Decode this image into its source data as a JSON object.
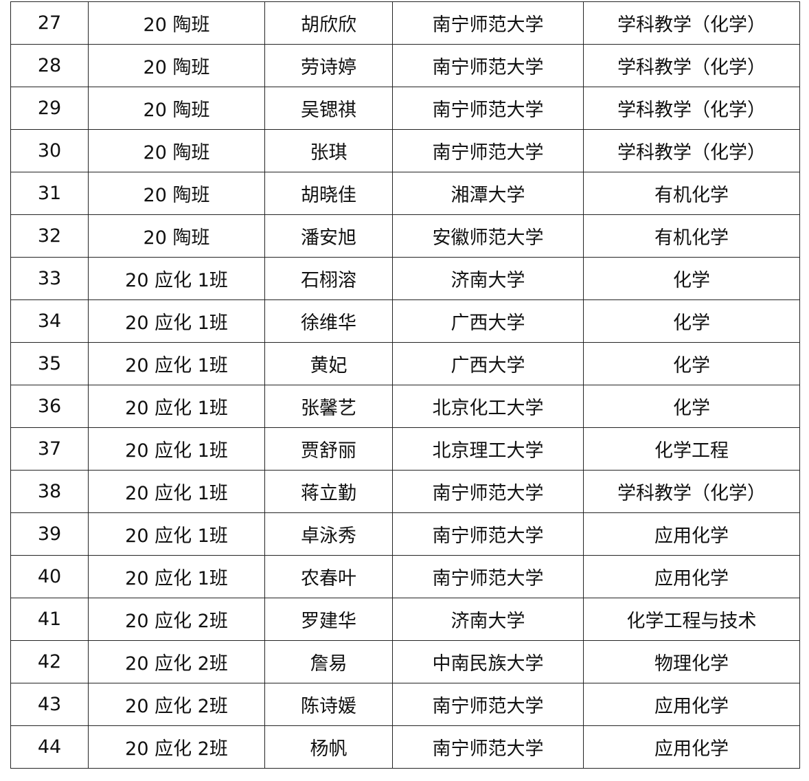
{
  "rows": [
    [
      "27",
      "20 陶班",
      "胡欣欣",
      "南宁师范大学",
      "学科教学（化学）"
    ],
    [
      "28",
      "20 陶班",
      "劳诗婷",
      "南宁师范大学",
      "学科教学（化学）"
    ],
    [
      "29",
      "20 陶班",
      "吴锶祺",
      "南宁师范大学",
      "学科教学（化学）"
    ],
    [
      "30",
      "20 陶班",
      "张琪",
      "南宁师范大学",
      "学科教学（化学）"
    ],
    [
      "31",
      "20 陶班",
      "胡晓佳",
      "湘潭大学",
      "有机化学"
    ],
    [
      "32",
      "20 陶班",
      "潘安旭",
      "安徽师范大学",
      "有机化学"
    ],
    [
      "33",
      "20 应化 1班",
      "石栩溶",
      "济南大学",
      "化学"
    ],
    [
      "34",
      "20 应化 1班",
      "徐维华",
      "广西大学",
      "化学"
    ],
    [
      "35",
      "20 应化 1班",
      "黄妃",
      "广西大学",
      "化学"
    ],
    [
      "36",
      "20 应化 1班",
      "张馨艺",
      "北京化工大学",
      "化学"
    ],
    [
      "37",
      "20 应化 1班",
      "贾舒丽",
      "北京理工大学",
      "化学工程"
    ],
    [
      "38",
      "20 应化 1班",
      "蒋立勤",
      "南宁师范大学",
      "学科教学（化学）"
    ],
    [
      "39",
      "20 应化 1班",
      "卓泳秀",
      "南宁师范大学",
      "应用化学"
    ],
    [
      "40",
      "20 应化 1班",
      "农春叶",
      "南宁师范大学",
      "应用化学"
    ],
    [
      "41",
      "20 应化 2班",
      "罗建华",
      "济南大学",
      "化学工程与技术"
    ],
    [
      "42",
      "20 应化 2班",
      "詹易",
      "中南民族大学",
      "物理化学"
    ],
    [
      "43",
      "20 应化 2班",
      "陈诗媛",
      "南宁师范大学",
      "应用化学"
    ],
    [
      "44",
      "20 应化 2班",
      "杨帆",
      "南宁师范大学",
      "应用化学"
    ]
  ]
}
